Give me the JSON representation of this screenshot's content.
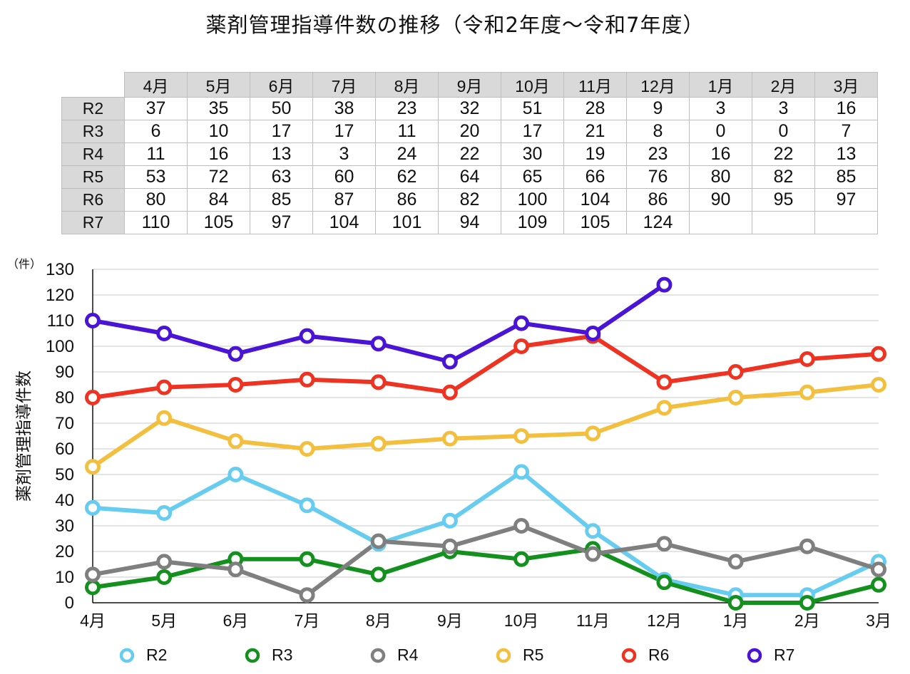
{
  "title": "薬剤管理指導件数の推移（令和2年度〜令和7年度）",
  "table": {
    "columns": [
      "4月",
      "5月",
      "6月",
      "7月",
      "8月",
      "9月",
      "10月",
      "11月",
      "12月",
      "1月",
      "2月",
      "3月"
    ],
    "rows": [
      {
        "label": "R2",
        "cells": [
          "37",
          "35",
          "50",
          "38",
          "23",
          "32",
          "51",
          "28",
          "9",
          "3",
          "3",
          "16"
        ]
      },
      {
        "label": "R3",
        "cells": [
          "6",
          "10",
          "17",
          "17",
          "11",
          "20",
          "17",
          "21",
          "8",
          "0",
          "0",
          "7"
        ]
      },
      {
        "label": "R4",
        "cells": [
          "11",
          "16",
          "13",
          "3",
          "24",
          "22",
          "30",
          "19",
          "23",
          "16",
          "22",
          "13"
        ]
      },
      {
        "label": "R5",
        "cells": [
          "53",
          "72",
          "63",
          "60",
          "62",
          "64",
          "65",
          "66",
          "76",
          "80",
          "82",
          "85"
        ]
      },
      {
        "label": "R6",
        "cells": [
          "80",
          "84",
          "85",
          "87",
          "86",
          "82",
          "100",
          "104",
          "86",
          "90",
          "95",
          "97"
        ]
      },
      {
        "label": "R7",
        "cells": [
          "110",
          "105",
          "97",
          "104",
          "101",
          "94",
          "109",
          "105",
          "124",
          "",
          "",
          ""
        ]
      }
    ]
  },
  "chart_data": {
    "type": "line",
    "title": "",
    "xlabel": "",
    "ylabel": "薬剤管理指導件数",
    "yunit": "（件）",
    "ylim": [
      0,
      130
    ],
    "ytick_step": 10,
    "grid": true,
    "legend_position": "bottom",
    "categories": [
      "4月",
      "5月",
      "6月",
      "7月",
      "8月",
      "9月",
      "10月",
      "11月",
      "12月",
      "1月",
      "2月",
      "3月"
    ],
    "series": [
      {
        "name": "R2",
        "color": "#66ccf0",
        "values": [
          37,
          35,
          50,
          38,
          23,
          32,
          51,
          28,
          9,
          3,
          3,
          16
        ]
      },
      {
        "name": "R3",
        "color": "#14901e",
        "values": [
          6,
          10,
          17,
          17,
          11,
          20,
          17,
          21,
          8,
          0,
          0,
          7
        ]
      },
      {
        "name": "R4",
        "color": "#7f7f7f",
        "values": [
          11,
          16,
          13,
          3,
          24,
          22,
          30,
          19,
          23,
          16,
          22,
          13
        ]
      },
      {
        "name": "R5",
        "color": "#f3bf3f",
        "values": [
          53,
          72,
          63,
          60,
          62,
          64,
          65,
          66,
          76,
          80,
          82,
          85
        ]
      },
      {
        "name": "R6",
        "color": "#ee3322",
        "values": [
          80,
          84,
          85,
          87,
          86,
          82,
          100,
          104,
          86,
          90,
          95,
          97
        ]
      },
      {
        "name": "R7",
        "color": "#4a14d6",
        "values": [
          110,
          105,
          97,
          104,
          101,
          94,
          109,
          105,
          124,
          null,
          null,
          null
        ]
      }
    ]
  }
}
